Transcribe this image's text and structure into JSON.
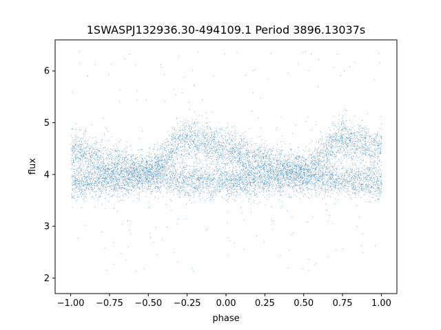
{
  "chart_data": {
    "type": "scatter",
    "title": "1SWASPJ132936.30-494109.1 Period 3896.13037s",
    "xlabel": "phase",
    "ylabel": "flux",
    "xlim": [
      -1.1,
      1.1
    ],
    "ylim": [
      1.7,
      6.6
    ],
    "x_ticks": [
      -1.0,
      -0.75,
      -0.5,
      -0.25,
      0.0,
      0.25,
      0.5,
      0.75,
      1.0
    ],
    "x_tick_labels": [
      "−1.00",
      "−0.75",
      "−0.50",
      "−0.25",
      "0.00",
      "0.25",
      "0.50",
      "0.75",
      "1.00"
    ],
    "y_ticks": [
      2,
      3,
      4,
      5,
      6
    ],
    "y_tick_labels": [
      "2",
      "3",
      "4",
      "5",
      "6"
    ],
    "grid": false,
    "legend": "none",
    "marker_color": "#1f77b4",
    "series": [
      {
        "note": "folded light curve, two bands",
        "upper_band_profile": {
          "phase": [
            -1.0,
            -0.75,
            -0.5,
            -0.25,
            0.0,
            0.25,
            0.5,
            0.75,
            1.0
          ],
          "flux": [
            4.5,
            4.2,
            4.05,
            4.7,
            4.5,
            4.2,
            4.05,
            4.7,
            4.5
          ]
        },
        "lower_band_profile": {
          "phase": [
            -1.0,
            -0.75,
            -0.5,
            -0.25,
            0.0,
            0.25,
            0.5,
            0.75,
            1.0
          ],
          "flux": [
            3.85,
            3.9,
            4.0,
            3.9,
            3.85,
            3.9,
            4.0,
            3.9,
            3.85
          ]
        }
      }
    ]
  }
}
